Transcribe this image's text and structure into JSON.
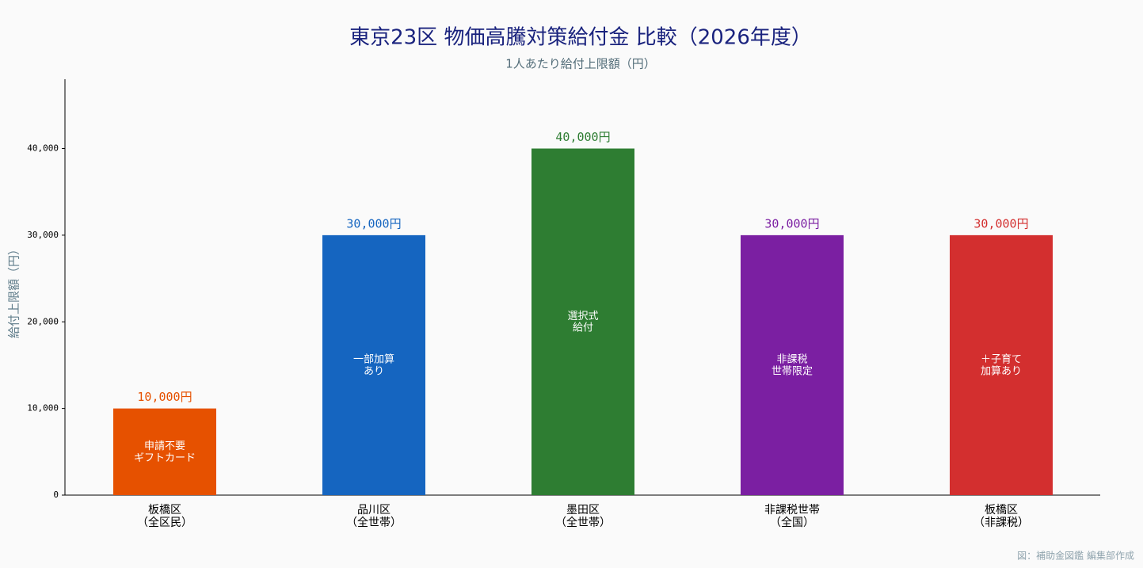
{
  "chart_data": {
    "type": "bar",
    "title": "東京23区 物価高騰対策給付金 比較（2026年度）",
    "subtitle": "1人あたり給付上限額（円）",
    "y_label": "給付上限額（円）",
    "categories": [
      "板橋区\n（全区民）",
      "品川区\n（全世帯）",
      "墨田区\n（全世帯）",
      "非課税世帯\n（全国）",
      "板橋区\n（非課税）"
    ],
    "values": [
      10000,
      30000,
      40000,
      30000,
      30000
    ],
    "value_labels": [
      "10,000円",
      "30,000円",
      "40,000円",
      "30,000円",
      "30,000円"
    ],
    "annotations": [
      "申請不要\nギフトカード",
      "一部加算\nあり",
      "選択式\n給付",
      "非課税\n世帯限定",
      "＋子育て\n加算あり"
    ],
    "colors": [
      "#e65100",
      "#1565c0",
      "#2e7d32",
      "#7b1fa2",
      "#d32f2f"
    ],
    "ylim": [
      0,
      48000
    ],
    "yticks": [
      0,
      {
        "value": 10000,
        "label": "10,000"
      },
      {
        "value": 20000,
        "label": "20,000"
      },
      {
        "value": 30000,
        "label": "30,000"
      },
      {
        "value": 40000,
        "label": "40,000"
      }
    ],
    "grid": false,
    "source": "図：補助金図鑑 編集部作成"
  }
}
